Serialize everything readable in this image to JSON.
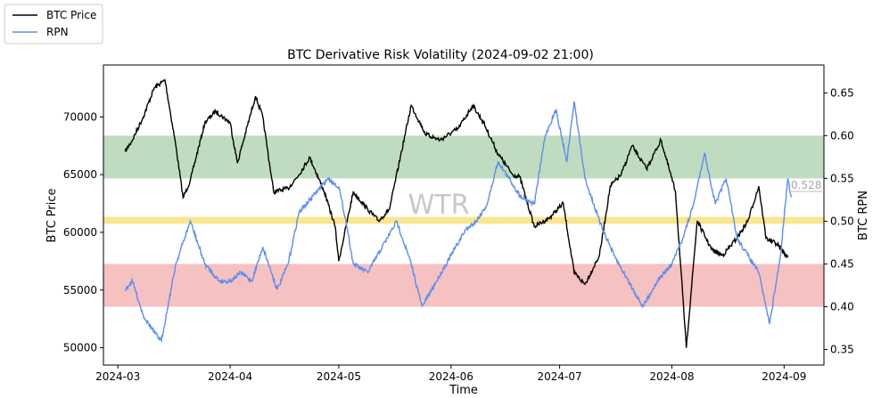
{
  "chart_data": {
    "type": "line",
    "title": "BTC Derivative Risk Volatility (2024-09-02 21:00)",
    "xlabel": "Time",
    "ylabel_left": "BTC Price",
    "ylabel_right": "BTC RPN",
    "ylim_left": [
      48500,
      74500
    ],
    "ylim_right": [
      0.3318,
      0.6826
    ],
    "xlim": [
      "2024-02-26",
      "2024-09-12"
    ],
    "x_ticks": [
      "2024-03",
      "2024-04",
      "2024-05",
      "2024-06",
      "2024-07",
      "2024-08",
      "2024-09"
    ],
    "x_tick_dates": [
      "2024-03-01",
      "2024-04-01",
      "2024-05-01",
      "2024-06-01",
      "2024-07-01",
      "2024-08-01",
      "2024-09-01"
    ],
    "y_ticks_left": [
      50000,
      55000,
      60000,
      65000,
      70000
    ],
    "y_ticks_right": [
      0.35,
      0.4,
      0.45,
      0.5,
      0.55,
      0.6,
      0.65
    ],
    "legend": {
      "placement": "top-left outside",
      "entries": [
        "BTC Price",
        "RPN"
      ]
    },
    "bands": [
      {
        "name": "high-risk-zone",
        "from": 0.55,
        "to": 0.6,
        "color": "#b5d6b5"
      },
      {
        "name": "mid-line",
        "from": 0.497,
        "to": 0.505,
        "color": "#f8e27a"
      },
      {
        "name": "low-risk-zone",
        "from": 0.4,
        "to": 0.45,
        "color": "#f4b6b6"
      }
    ],
    "watermark": "WTR",
    "last_rpn_label": "0.528",
    "series": [
      {
        "name": "BTC Price",
        "axis": "left",
        "color": "#000000",
        "dates": [
          "2024-03-03",
          "2024-03-05",
          "2024-03-08",
          "2024-03-11",
          "2024-03-14",
          "2024-03-17",
          "2024-03-19",
          "2024-03-21",
          "2024-03-25",
          "2024-03-28",
          "2024-04-01",
          "2024-04-03",
          "2024-04-08",
          "2024-04-10",
          "2024-04-13",
          "2024-04-17",
          "2024-04-20",
          "2024-04-23",
          "2024-04-27",
          "2024-04-30",
          "2024-05-01",
          "2024-05-05",
          "2024-05-09",
          "2024-05-12",
          "2024-05-15",
          "2024-05-18",
          "2024-05-21",
          "2024-05-25",
          "2024-05-29",
          "2024-06-03",
          "2024-06-07",
          "2024-06-10",
          "2024-06-14",
          "2024-06-18",
          "2024-06-20",
          "2024-06-24",
          "2024-06-28",
          "2024-07-02",
          "2024-07-05",
          "2024-07-08",
          "2024-07-12",
          "2024-07-15",
          "2024-07-18",
          "2024-07-21",
          "2024-07-25",
          "2024-07-29",
          "2024-08-02",
          "2024-08-05",
          "2024-08-08",
          "2024-08-12",
          "2024-08-15",
          "2024-08-19",
          "2024-08-22",
          "2024-08-25",
          "2024-08-27",
          "2024-08-30",
          "2024-09-02"
        ],
        "values": [
          67000,
          68000,
          70000,
          72500,
          73200,
          67500,
          63000,
          64500,
          69500,
          70500,
          69500,
          66000,
          71800,
          70000,
          63500,
          63800,
          65000,
          66500,
          63500,
          60500,
          57500,
          63500,
          62000,
          61000,
          62000,
          66500,
          71000,
          68500,
          68000,
          69000,
          71000,
          69500,
          66800,
          65000,
          64800,
          60500,
          61200,
          62500,
          56500,
          55500,
          58000,
          64000,
          65000,
          67500,
          65500,
          68000,
          63500,
          50000,
          61000,
          58500,
          58000,
          59500,
          61000,
          64000,
          59500,
          59000,
          57800
        ]
      },
      {
        "name": "RPN",
        "axis": "right",
        "color": "#5b8def",
        "dates": [
          "2024-03-03",
          "2024-03-05",
          "2024-03-08",
          "2024-03-11",
          "2024-03-13",
          "2024-03-17",
          "2024-03-21",
          "2024-03-25",
          "2024-03-29",
          "2024-04-01",
          "2024-04-04",
          "2024-04-07",
          "2024-04-10",
          "2024-04-14",
          "2024-04-17",
          "2024-04-20",
          "2024-04-24",
          "2024-04-28",
          "2024-05-01",
          "2024-05-03",
          "2024-05-05",
          "2024-05-09",
          "2024-05-13",
          "2024-05-17",
          "2024-05-21",
          "2024-05-24",
          "2024-05-28",
          "2024-06-01",
          "2024-06-05",
          "2024-06-08",
          "2024-06-11",
          "2024-06-14",
          "2024-06-17",
          "2024-06-20",
          "2024-06-24",
          "2024-06-27",
          "2024-06-30",
          "2024-07-03",
          "2024-07-05",
          "2024-07-08",
          "2024-07-12",
          "2024-07-16",
          "2024-07-20",
          "2024-07-24",
          "2024-07-28",
          "2024-08-01",
          "2024-08-04",
          "2024-08-07",
          "2024-08-10",
          "2024-08-13",
          "2024-08-16",
          "2024-08-19",
          "2024-08-22",
          "2024-08-25",
          "2024-08-28",
          "2024-08-31",
          "2024-09-02",
          "2024-09-03"
        ],
        "values": [
          0.42,
          0.43,
          0.39,
          0.37,
          0.36,
          0.45,
          0.5,
          0.45,
          0.43,
          0.43,
          0.44,
          0.43,
          0.47,
          0.42,
          0.45,
          0.51,
          0.53,
          0.55,
          0.54,
          0.5,
          0.45,
          0.44,
          0.47,
          0.5,
          0.45,
          0.4,
          0.43,
          0.46,
          0.49,
          0.5,
          0.52,
          0.57,
          0.55,
          0.53,
          0.52,
          0.6,
          0.63,
          0.57,
          0.64,
          0.55,
          0.5,
          0.46,
          0.43,
          0.4,
          0.43,
          0.45,
          0.48,
          0.52,
          0.58,
          0.52,
          0.55,
          0.48,
          0.46,
          0.44,
          0.38,
          0.46,
          0.55,
          0.528
        ]
      }
    ]
  }
}
